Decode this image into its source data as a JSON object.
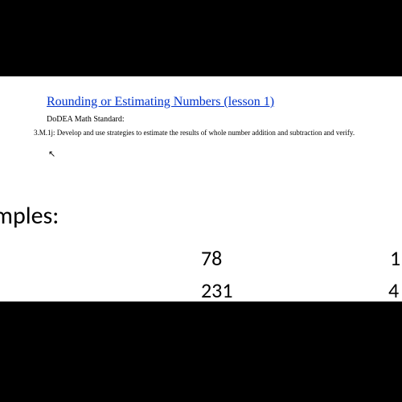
{
  "slide": {
    "title": "Rounding or Estimating Numbers (lesson 1)",
    "title_color": "#0033cc",
    "standard_label": "DoDEA Math Standard:",
    "standard_text": "3.M.1j: Develop and use strategies to estimate the results of whole number addition and subtraction and verify.",
    "cursor_glyph": "↖",
    "examples_label": "mples:",
    "numbers": {
      "n78": "78",
      "n231": "231",
      "n1": "1",
      "n4": "4"
    },
    "background_color": "#ffffff",
    "text_color": "#000000",
    "page_bg": "#000000",
    "title_fontsize": 16,
    "standard_label_fontsize": 10,
    "standard_text_fontsize": 9,
    "examples_fontsize": 30,
    "number_fontsize": 26
  }
}
